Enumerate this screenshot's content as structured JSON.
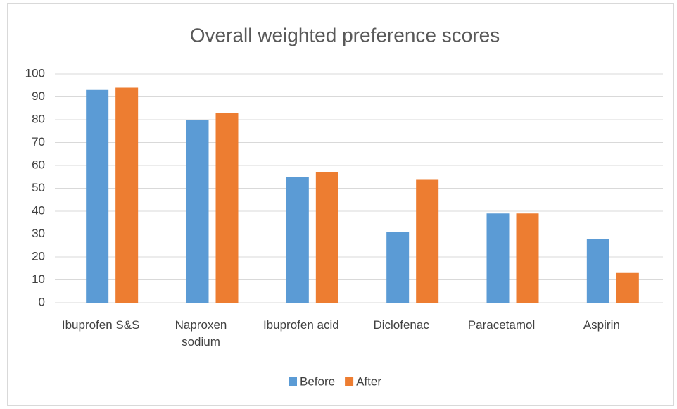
{
  "chart_data": {
    "type": "bar",
    "title": "Overall weighted preference scores",
    "categories": [
      "Ibuprofen S&S",
      "Naproxen sodium",
      "Ibuprofen acid",
      "Diclofenac",
      "Paracetamol",
      "Aspirin"
    ],
    "series": [
      {
        "name": "Before",
        "color": "#5b9bd5",
        "values": [
          93,
          80,
          55,
          31,
          39,
          28
        ]
      },
      {
        "name": "After",
        "color": "#ed7d31",
        "values": [
          94,
          83,
          57,
          54,
          39,
          13
        ]
      }
    ],
    "ylim": [
      0,
      100
    ],
    "yticks": [
      0,
      10,
      20,
      30,
      40,
      50,
      60,
      70,
      80,
      90,
      100
    ],
    "grid": true,
    "legend": "bottom"
  }
}
